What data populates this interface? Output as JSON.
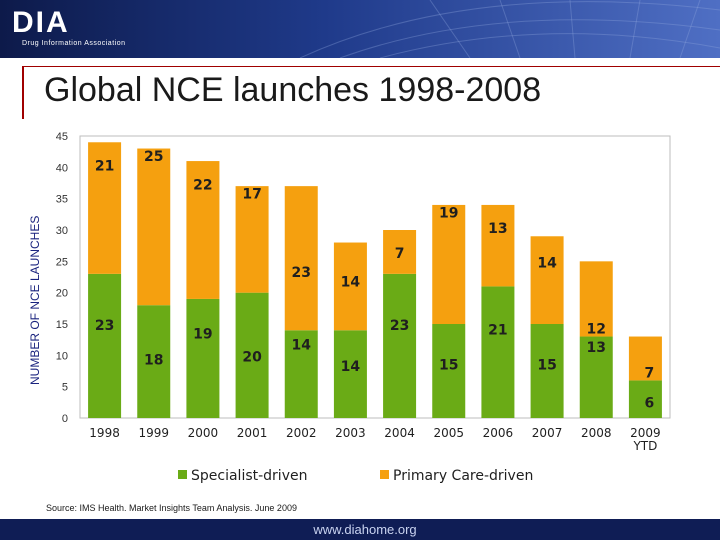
{
  "banner": {
    "logo": "DIA",
    "logo_sub": "Drug Information Association"
  },
  "slide_title": "Global NCE launches 1998-2008",
  "colors": {
    "specialist": "#6aab16",
    "primary": "#f5a00f",
    "banner_dark": "#0d1a4a",
    "footer": "#0f1d55",
    "title_rule": "#a00000"
  },
  "chart_data": {
    "type": "bar",
    "stacked": true,
    "title": "Global NCE launches 1998-2008",
    "xlabel": "",
    "ylabel": "NUMBER OF NCE LAUNCHES",
    "ylim": [
      0,
      45
    ],
    "yticks": [
      0,
      5,
      10,
      15,
      20,
      25,
      30,
      35,
      40,
      45
    ],
    "grid": false,
    "legend_position": "bottom",
    "categories": [
      "1998",
      "1999",
      "2000",
      "2001",
      "2002",
      "2003",
      "2004",
      "2005",
      "2006",
      "2007",
      "2008",
      "2009 YTD"
    ],
    "series": [
      {
        "name": "Specialist-driven",
        "values": [
          23,
          18,
          19,
          20,
          14,
          14,
          23,
          15,
          21,
          15,
          13,
          6
        ]
      },
      {
        "name": "Primary Care-driven",
        "values": [
          21,
          25,
          22,
          17,
          23,
          14,
          7,
          19,
          13,
          14,
          12,
          7
        ]
      }
    ]
  },
  "legend": {
    "specialist_label": "Specialist-driven",
    "primary_label": "Primary Care-driven"
  },
  "source": "Source: IMS Health. Market Insights Team Analysis. June 2009",
  "footer": {
    "url": "www.diahome.org"
  }
}
